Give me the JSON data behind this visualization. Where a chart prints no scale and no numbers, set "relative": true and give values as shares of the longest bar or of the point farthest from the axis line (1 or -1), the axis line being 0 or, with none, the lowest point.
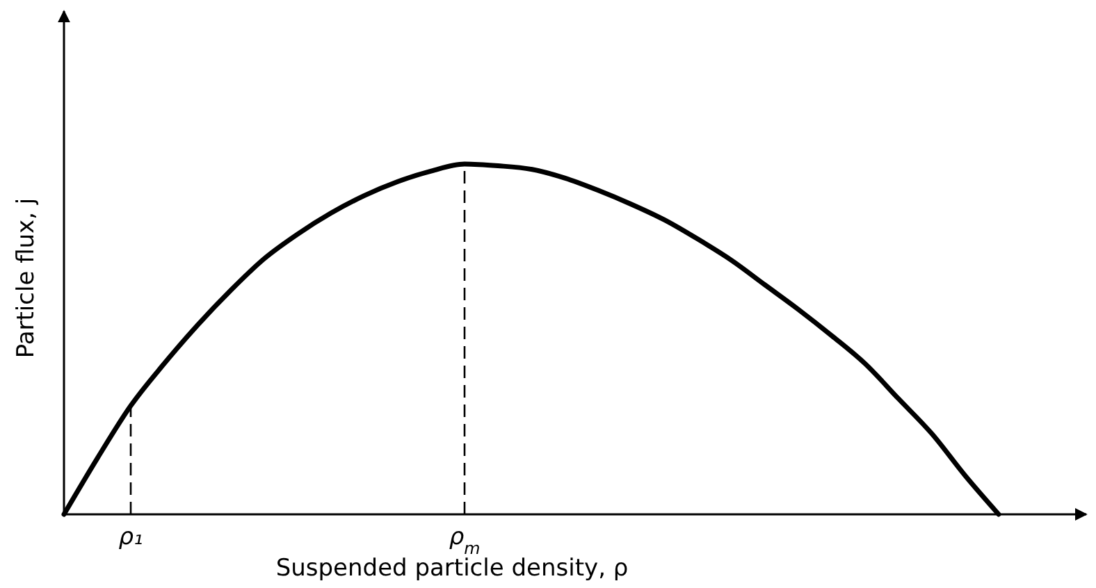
{
  "chart_data": {
    "type": "line",
    "relative": true,
    "tick_labels": "x",
    "xlabel": "Suspended particle density, ρ",
    "ylabel": "Particle flux, j",
    "categories": [
      null,
      null,
      "ρ₁",
      null,
      null,
      null,
      null,
      null,
      null,
      null,
      null,
      null,
      "ρ$_{m}$",
      null,
      null,
      null,
      null,
      null,
      null,
      null,
      null,
      null,
      null,
      null,
      null,
      null,
      null,
      null,
      null,
      null,
      null
    ],
    "series": [
      {
        "color": "#000000",
        "values": [
          0,
          0.16,
          0.31,
          0.43,
          0.54,
          0.64,
          0.73,
          0.8,
          0.86,
          0.91,
          0.95,
          0.98,
          1,
          0.995,
          0.985,
          0.96,
          0.925,
          0.885,
          0.84,
          0.785,
          0.725,
          0.655,
          0.585,
          0.51,
          0.43,
          0.33,
          0.23,
          0.11,
          0,
          null,
          null
        ]
      }
    ],
    "ref_lines": [
      {
        "axis": "x",
        "value": "ρ₁",
        "line_style": "dashed"
      },
      {
        "axis": "x",
        "value": "ρ$_{m}$",
        "line_style": "dashed"
      }
    ],
    "marker": "none",
    "line_style": "solid"
  }
}
